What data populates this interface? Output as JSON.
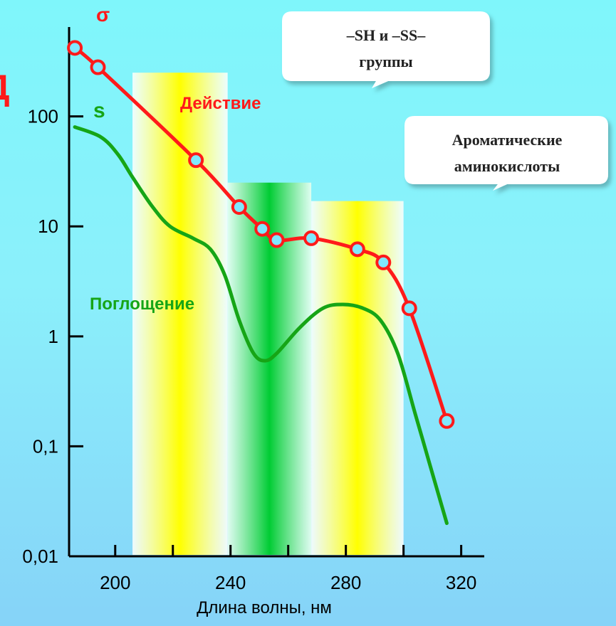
{
  "colors": {
    "action": "#ff1a1a",
    "absorption": "#16a516",
    "marker_fill": "#7fe8ff",
    "edge_label": "#ff1a1a"
  },
  "edge_label": "Д",
  "callouts": [
    {
      "lines": [
        "–SH и –SS–",
        "группы"
      ]
    },
    {
      "lines": [
        "Ароматические",
        "аминокислоты"
      ]
    }
  ],
  "chart_data": {
    "type": "line",
    "xlabel": "Длина волны, нм",
    "x_ticks": [
      200,
      240,
      280,
      320
    ],
    "y_ticks": [
      {
        "value": 100,
        "label": "100"
      },
      {
        "value": 10,
        "label": "10"
      },
      {
        "value": 1,
        "label": "1"
      },
      {
        "value": 0.1,
        "label": "0,1"
      },
      {
        "value": 0.01,
        "label": "0,01"
      }
    ],
    "y_scale": "log",
    "xlim": [
      184,
      328
    ],
    "ylim": [
      0.01,
      650
    ],
    "bands": [
      {
        "x": [
          206,
          239
        ],
        "color": "yellow",
        "top": 250
      },
      {
        "x": [
          239,
          268
        ],
        "color": "green",
        "top": 25
      },
      {
        "x": [
          268,
          300
        ],
        "color": "yellow",
        "top": 17
      }
    ],
    "series": [
      {
        "name": "Действие",
        "symbol": "σ",
        "color": "#ff1a1a",
        "marker": "circle",
        "x": [
          186,
          194,
          228,
          243,
          251,
          256,
          268,
          284,
          293,
          302,
          315
        ],
        "y": [
          420,
          280,
          40,
          15,
          9.5,
          7.5,
          7.8,
          6.2,
          4.7,
          1.8,
          0.17
        ]
      },
      {
        "name": "Поглощение",
        "symbol": "s",
        "color": "#16a516",
        "marker": "none",
        "x": [
          186,
          195,
          201,
          206,
          213,
          219,
          227,
          233,
          238,
          243,
          248,
          252,
          256,
          264,
          272,
          279,
          286,
          292,
          298,
          304,
          309,
          315
        ],
        "y": [
          80,
          65,
          45,
          28,
          15,
          10,
          7.8,
          6.2,
          3.6,
          1.4,
          0.7,
          0.6,
          0.7,
          1.2,
          1.8,
          1.95,
          1.8,
          1.4,
          0.7,
          0.2,
          0.07,
          0.02
        ]
      }
    ]
  }
}
